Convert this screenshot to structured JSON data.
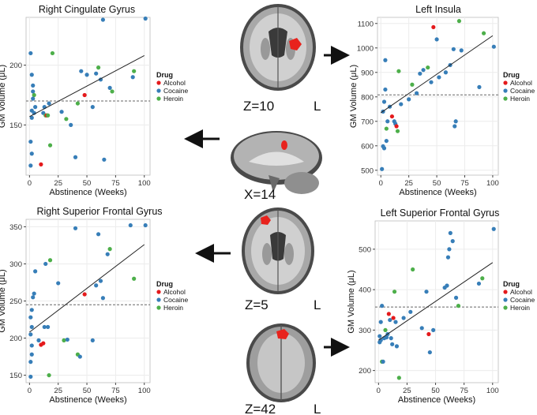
{
  "page": {
    "slices": [
      {
        "label": "Z=10",
        "side_label": "L"
      },
      {
        "label": "X=14",
        "side_label": ""
      },
      {
        "label": "Z=5",
        "side_label": "L"
      },
      {
        "label": "Z=42",
        "side_label": "L"
      }
    ]
  },
  "colors": {
    "Alcohol": "#e41a1c",
    "Cocaine": "#377eb8",
    "Heroin": "#4daf4a",
    "fit": "#222222",
    "mean": "#666666",
    "grid": "#ececec",
    "blob": "#e8231d"
  },
  "chart_data": [
    {
      "type": "scatter",
      "title": "Right Cingulate Gyrus",
      "xlabel": "Abstinence (Weeks)",
      "ylabel": "GM Volume  (μL)",
      "xlim": [
        -3,
        105
      ],
      "ylim": [
        108,
        240
      ],
      "xticks": [
        0,
        25,
        50,
        75,
        100
      ],
      "yticks": [
        150,
        200
      ],
      "legend_title": "Drug",
      "legend_position": "right",
      "fit_line": {
        "x": [
          0,
          100
        ],
        "y": [
          157,
          208
        ]
      },
      "mean_line": 170,
      "points": [
        {
          "x": 1,
          "y": 210,
          "g": "Cocaine"
        },
        {
          "x": 2,
          "y": 192,
          "g": "Cocaine"
        },
        {
          "x": 3,
          "y": 183,
          "g": "Cocaine"
        },
        {
          "x": 3,
          "y": 178,
          "g": "Cocaine"
        },
        {
          "x": 4,
          "y": 175,
          "g": "Heroin"
        },
        {
          "x": 3,
          "y": 172,
          "g": "Cocaine"
        },
        {
          "x": 5,
          "y": 165,
          "g": "Cocaine"
        },
        {
          "x": 2,
          "y": 162,
          "g": "Cocaine"
        },
        {
          "x": 4,
          "y": 160,
          "g": "Cocaine"
        },
        {
          "x": 2,
          "y": 156,
          "g": "Cocaine"
        },
        {
          "x": 1,
          "y": 136,
          "g": "Cocaine"
        },
        {
          "x": 2,
          "y": 126,
          "g": "Cocaine"
        },
        {
          "x": 1,
          "y": 116,
          "g": "Cocaine"
        },
        {
          "x": 10,
          "y": 117,
          "g": "Alcohol"
        },
        {
          "x": 12,
          "y": 160,
          "g": "Cocaine"
        },
        {
          "x": 13,
          "y": 165,
          "g": "Cocaine"
        },
        {
          "x": 14,
          "y": 158,
          "g": "Heroin"
        },
        {
          "x": 15,
          "y": 158,
          "g": "Alcohol"
        },
        {
          "x": 16,
          "y": 158,
          "g": "Heroin"
        },
        {
          "x": 17,
          "y": 168,
          "g": "Cocaine"
        },
        {
          "x": 18,
          "y": 133,
          "g": "Heroin"
        },
        {
          "x": 20,
          "y": 210,
          "g": "Heroin"
        },
        {
          "x": 28,
          "y": 161,
          "g": "Cocaine"
        },
        {
          "x": 32,
          "y": 155,
          "g": "Heroin"
        },
        {
          "x": 36,
          "y": 150,
          "g": "Cocaine"
        },
        {
          "x": 40,
          "y": 123,
          "g": "Cocaine"
        },
        {
          "x": 42,
          "y": 168,
          "g": "Heroin"
        },
        {
          "x": 45,
          "y": 195,
          "g": "Cocaine"
        },
        {
          "x": 48,
          "y": 175,
          "g": "Alcohol"
        },
        {
          "x": 50,
          "y": 192,
          "g": "Cocaine"
        },
        {
          "x": 55,
          "y": 165,
          "g": "Cocaine"
        },
        {
          "x": 58,
          "y": 193,
          "g": "Cocaine"
        },
        {
          "x": 60,
          "y": 198,
          "g": "Heroin"
        },
        {
          "x": 62,
          "y": 188,
          "g": "Cocaine"
        },
        {
          "x": 64,
          "y": 238,
          "g": "Cocaine"
        },
        {
          "x": 65,
          "y": 121,
          "g": "Cocaine"
        },
        {
          "x": 70,
          "y": 181,
          "g": "Cocaine"
        },
        {
          "x": 72,
          "y": 178,
          "g": "Heroin"
        },
        {
          "x": 90,
          "y": 190,
          "g": "Cocaine"
        },
        {
          "x": 91,
          "y": 195,
          "g": "Heroin"
        },
        {
          "x": 101,
          "y": 239,
          "g": "Cocaine"
        }
      ]
    },
    {
      "type": "scatter",
      "title": "Left  Insula",
      "xlabel": "Abstinence (Weeks)",
      "ylabel": "GM Volume  (μL)",
      "xlim": [
        -3,
        105
      ],
      "ylim": [
        480,
        1125
      ],
      "xticks": [
        0,
        25,
        50,
        75,
        100
      ],
      "yticks": [
        500,
        600,
        700,
        800,
        900,
        1000,
        1100
      ],
      "legend_title": "Drug",
      "legend_position": "right",
      "fit_line": {
        "x": [
          0,
          100
        ],
        "y": [
          735,
          1050
        ]
      },
      "mean_line": 808,
      "points": [
        {
          "x": 1,
          "y": 505,
          "g": "Cocaine"
        },
        {
          "x": 2,
          "y": 598,
          "g": "Cocaine"
        },
        {
          "x": 3,
          "y": 590,
          "g": "Cocaine"
        },
        {
          "x": 2,
          "y": 740,
          "g": "Cocaine"
        },
        {
          "x": 3,
          "y": 780,
          "g": "Cocaine"
        },
        {
          "x": 4,
          "y": 830,
          "g": "Cocaine"
        },
        {
          "x": 4,
          "y": 950,
          "g": "Cocaine"
        },
        {
          "x": 5,
          "y": 670,
          "g": "Heroin"
        },
        {
          "x": 5,
          "y": 620,
          "g": "Cocaine"
        },
        {
          "x": 6,
          "y": 700,
          "g": "Cocaine"
        },
        {
          "x": 8,
          "y": 760,
          "g": "Cocaine"
        },
        {
          "x": 10,
          "y": 720,
          "g": "Alcohol"
        },
        {
          "x": 12,
          "y": 700,
          "g": "Cocaine"
        },
        {
          "x": 13,
          "y": 690,
          "g": "Cocaine"
        },
        {
          "x": 14,
          "y": 680,
          "g": "Alcohol"
        },
        {
          "x": 15,
          "y": 660,
          "g": "Heroin"
        },
        {
          "x": 16,
          "y": 905,
          "g": "Heroin"
        },
        {
          "x": 18,
          "y": 770,
          "g": "Cocaine"
        },
        {
          "x": 25,
          "y": 790,
          "g": "Cocaine"
        },
        {
          "x": 28,
          "y": 850,
          "g": "Heroin"
        },
        {
          "x": 32,
          "y": 815,
          "g": "Cocaine"
        },
        {
          "x": 35,
          "y": 895,
          "g": "Cocaine"
        },
        {
          "x": 38,
          "y": 910,
          "g": "Cocaine"
        },
        {
          "x": 42,
          "y": 920,
          "g": "Heroin"
        },
        {
          "x": 45,
          "y": 860,
          "g": "Cocaine"
        },
        {
          "x": 47,
          "y": 1085,
          "g": "Alcohol"
        },
        {
          "x": 50,
          "y": 1035,
          "g": "Cocaine"
        },
        {
          "x": 52,
          "y": 880,
          "g": "Cocaine"
        },
        {
          "x": 58,
          "y": 900,
          "g": "Cocaine"
        },
        {
          "x": 62,
          "y": 930,
          "g": "Cocaine"
        },
        {
          "x": 65,
          "y": 995,
          "g": "Cocaine"
        },
        {
          "x": 66,
          "y": 680,
          "g": "Cocaine"
        },
        {
          "x": 67,
          "y": 700,
          "g": "Cocaine"
        },
        {
          "x": 70,
          "y": 1110,
          "g": "Heroin"
        },
        {
          "x": 72,
          "y": 990,
          "g": "Cocaine"
        },
        {
          "x": 88,
          "y": 840,
          "g": "Cocaine"
        },
        {
          "x": 92,
          "y": 1060,
          "g": "Heroin"
        },
        {
          "x": 101,
          "y": 1005,
          "g": "Cocaine"
        }
      ]
    },
    {
      "type": "scatter",
      "title": "Right Superior Frontal Gyrus",
      "xlabel": "Abstinence (Weeks)",
      "ylabel": "GM Volume  (μL)",
      "xlim": [
        -3,
        105
      ],
      "ylim": [
        140,
        360
      ],
      "xticks": [
        0,
        25,
        50,
        75,
        100
      ],
      "yticks": [
        150,
        200,
        250,
        300,
        350
      ],
      "legend_title": "Drug",
      "legend_position": "right",
      "fit_line": {
        "x": [
          0,
          100
        ],
        "y": [
          208,
          326
        ]
      },
      "mean_line": 245,
      "points": [
        {
          "x": 1,
          "y": 148,
          "g": "Cocaine"
        },
        {
          "x": 1,
          "y": 168,
          "g": "Cocaine"
        },
        {
          "x": 2,
          "y": 178,
          "g": "Cocaine"
        },
        {
          "x": 2,
          "y": 190,
          "g": "Cocaine"
        },
        {
          "x": 1,
          "y": 205,
          "g": "Cocaine"
        },
        {
          "x": 2,
          "y": 215,
          "g": "Cocaine"
        },
        {
          "x": 1,
          "y": 228,
          "g": "Cocaine"
        },
        {
          "x": 2,
          "y": 238,
          "g": "Cocaine"
        },
        {
          "x": 3,
          "y": 255,
          "g": "Cocaine"
        },
        {
          "x": 4,
          "y": 260,
          "g": "Cocaine"
        },
        {
          "x": 5,
          "y": 290,
          "g": "Cocaine"
        },
        {
          "x": 8,
          "y": 197,
          "g": "Cocaine"
        },
        {
          "x": 10,
          "y": 191,
          "g": "Alcohol"
        },
        {
          "x": 12,
          "y": 193,
          "g": "Alcohol"
        },
        {
          "x": 13,
          "y": 215,
          "g": "Cocaine"
        },
        {
          "x": 14,
          "y": 300,
          "g": "Cocaine"
        },
        {
          "x": 16,
          "y": 215,
          "g": "Cocaine"
        },
        {
          "x": 17,
          "y": 150,
          "g": "Heroin"
        },
        {
          "x": 18,
          "y": 305,
          "g": "Heroin"
        },
        {
          "x": 25,
          "y": 274,
          "g": "Cocaine"
        },
        {
          "x": 30,
          "y": 197,
          "g": "Heroin"
        },
        {
          "x": 33,
          "y": 198,
          "g": "Cocaine"
        },
        {
          "x": 40,
          "y": 348,
          "g": "Cocaine"
        },
        {
          "x": 42,
          "y": 178,
          "g": "Heroin"
        },
        {
          "x": 44,
          "y": 175,
          "g": "Cocaine"
        },
        {
          "x": 48,
          "y": 259,
          "g": "Alcohol"
        },
        {
          "x": 55,
          "y": 197,
          "g": "Cocaine"
        },
        {
          "x": 58,
          "y": 271,
          "g": "Cocaine"
        },
        {
          "x": 60,
          "y": 340,
          "g": "Cocaine"
        },
        {
          "x": 62,
          "y": 277,
          "g": "Cocaine"
        },
        {
          "x": 64,
          "y": 254,
          "g": "Cocaine"
        },
        {
          "x": 68,
          "y": 313,
          "g": "Cocaine"
        },
        {
          "x": 70,
          "y": 320,
          "g": "Heroin"
        },
        {
          "x": 88,
          "y": 352,
          "g": "Cocaine"
        },
        {
          "x": 91,
          "y": 280,
          "g": "Heroin"
        },
        {
          "x": 101,
          "y": 352,
          "g": "Cocaine"
        }
      ]
    },
    {
      "type": "scatter",
      "title": "Left  Superior Frontal Gyrus",
      "xlabel": "Abstinence (Weeks)",
      "ylabel": "GM Volume  (μL)",
      "xlim": [
        -3,
        105
      ],
      "ylim": [
        170,
        570
      ],
      "xticks": [
        0,
        25,
        50,
        75,
        100
      ],
      "yticks": [
        200,
        300,
        400,
        500
      ],
      "legend_title": "Drug",
      "legend_position": "right",
      "fit_line": {
        "x": [
          0,
          100
        ],
        "y": [
          275,
          467
        ]
      },
      "mean_line": 357,
      "points": [
        {
          "x": 1,
          "y": 270,
          "g": "Cocaine"
        },
        {
          "x": 1,
          "y": 285,
          "g": "Cocaine"
        },
        {
          "x": 2,
          "y": 275,
          "g": "Cocaine"
        },
        {
          "x": 2,
          "y": 320,
          "g": "Cocaine"
        },
        {
          "x": 3,
          "y": 360,
          "g": "Cocaine"
        },
        {
          "x": 3,
          "y": 222,
          "g": "Heroin"
        },
        {
          "x": 4,
          "y": 222,
          "g": "Cocaine"
        },
        {
          "x": 5,
          "y": 280,
          "g": "Cocaine"
        },
        {
          "x": 6,
          "y": 300,
          "g": "Heroin"
        },
        {
          "x": 7,
          "y": 282,
          "g": "Cocaine"
        },
        {
          "x": 8,
          "y": 290,
          "g": "Cocaine"
        },
        {
          "x": 9,
          "y": 340,
          "g": "Alcohol"
        },
        {
          "x": 10,
          "y": 325,
          "g": "Cocaine"
        },
        {
          "x": 11,
          "y": 280,
          "g": "Cocaine"
        },
        {
          "x": 12,
          "y": 265,
          "g": "Cocaine"
        },
        {
          "x": 13,
          "y": 330,
          "g": "Alcohol"
        },
        {
          "x": 14,
          "y": 395,
          "g": "Heroin"
        },
        {
          "x": 15,
          "y": 320,
          "g": "Cocaine"
        },
        {
          "x": 16,
          "y": 260,
          "g": "Cocaine"
        },
        {
          "x": 18,
          "y": 182,
          "g": "Heroin"
        },
        {
          "x": 22,
          "y": 330,
          "g": "Cocaine"
        },
        {
          "x": 28,
          "y": 345,
          "g": "Cocaine"
        },
        {
          "x": 30,
          "y": 450,
          "g": "Heroin"
        },
        {
          "x": 38,
          "y": 305,
          "g": "Cocaine"
        },
        {
          "x": 42,
          "y": 395,
          "g": "Cocaine"
        },
        {
          "x": 44,
          "y": 290,
          "g": "Alcohol"
        },
        {
          "x": 45,
          "y": 245,
          "g": "Cocaine"
        },
        {
          "x": 48,
          "y": 300,
          "g": "Cocaine"
        },
        {
          "x": 58,
          "y": 405,
          "g": "Cocaine"
        },
        {
          "x": 60,
          "y": 410,
          "g": "Cocaine"
        },
        {
          "x": 61,
          "y": 480,
          "g": "Cocaine"
        },
        {
          "x": 62,
          "y": 500,
          "g": "Cocaine"
        },
        {
          "x": 63,
          "y": 540,
          "g": "Cocaine"
        },
        {
          "x": 65,
          "y": 520,
          "g": "Cocaine"
        },
        {
          "x": 68,
          "y": 380,
          "g": "Cocaine"
        },
        {
          "x": 70,
          "y": 360,
          "g": "Heroin"
        },
        {
          "x": 88,
          "y": 415,
          "g": "Cocaine"
        },
        {
          "x": 91,
          "y": 428,
          "g": "Heroin"
        },
        {
          "x": 101,
          "y": 550,
          "g": "Cocaine"
        }
      ]
    }
  ]
}
